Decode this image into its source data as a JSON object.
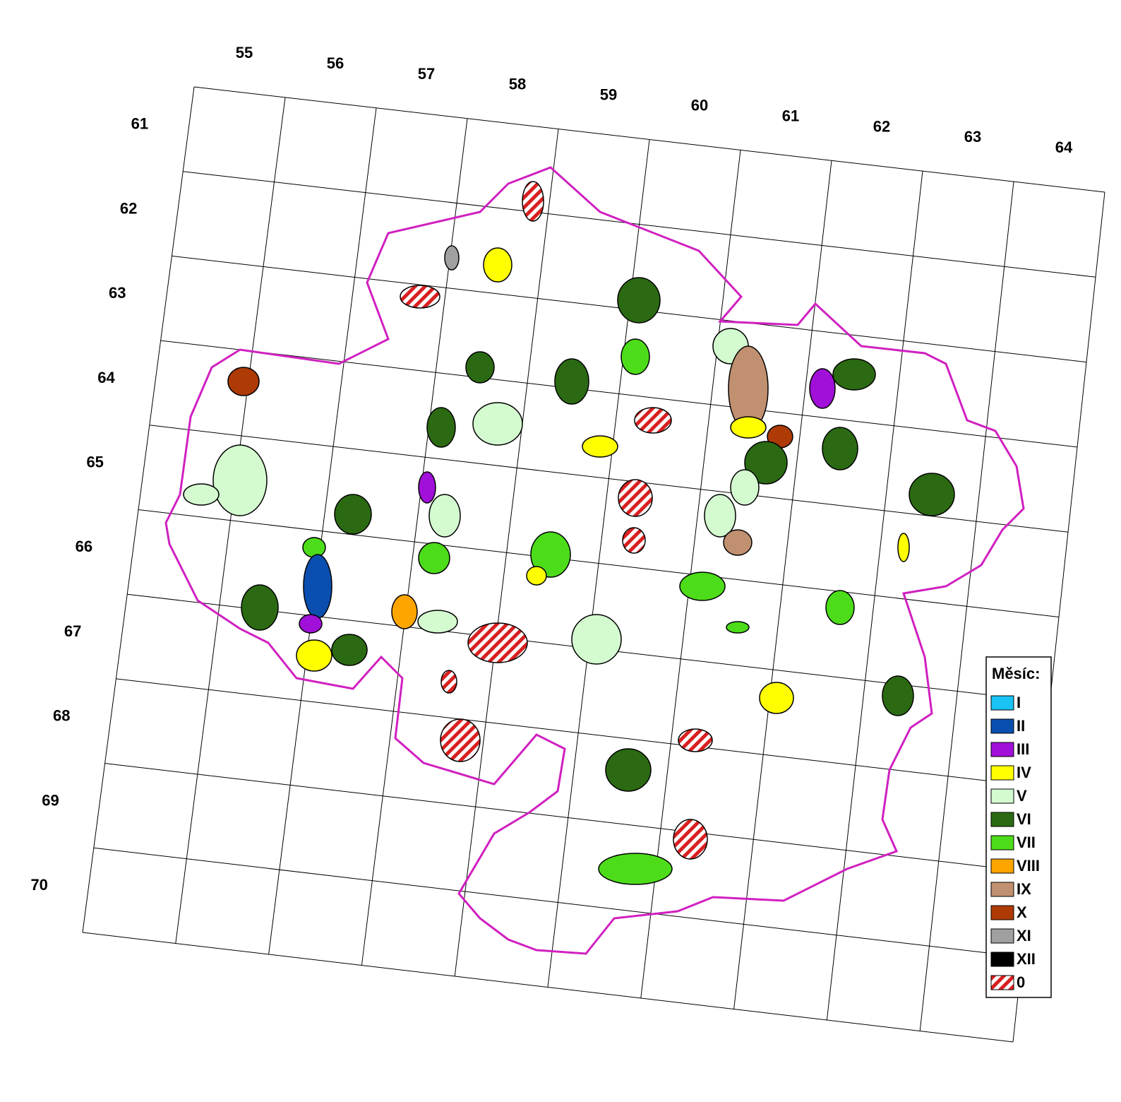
{
  "grid": {
    "columns": [
      55,
      56,
      57,
      58,
      59,
      60,
      61,
      62,
      63,
      64
    ],
    "rows": [
      61,
      62,
      63,
      64,
      65,
      66,
      67,
      68,
      69,
      70
    ]
  },
  "legend": {
    "title": "Měsíc:",
    "items": [
      {
        "label": "I",
        "color": "#19c3f5"
      },
      {
        "label": "II",
        "color": "#0a4fb0"
      },
      {
        "label": "III",
        "color": "#a010d8"
      },
      {
        "label": "IV",
        "color": "#ffff00"
      },
      {
        "label": "V",
        "color": "#d4fad0"
      },
      {
        "label": "VI",
        "color": "#2b6a12"
      },
      {
        "label": "VII",
        "color": "#4ddc1a"
      },
      {
        "label": "VIII",
        "color": "#ffa500"
      },
      {
        "label": "IX",
        "color": "#c09070"
      },
      {
        "label": "X",
        "color": "#ae3a05"
      },
      {
        "label": "XI",
        "color": "#a0a0a0"
      },
      {
        "label": "XII",
        "color": "#000000"
      },
      {
        "label": "0",
        "color": "#d82020",
        "hatched": true
      }
    ]
  }
}
